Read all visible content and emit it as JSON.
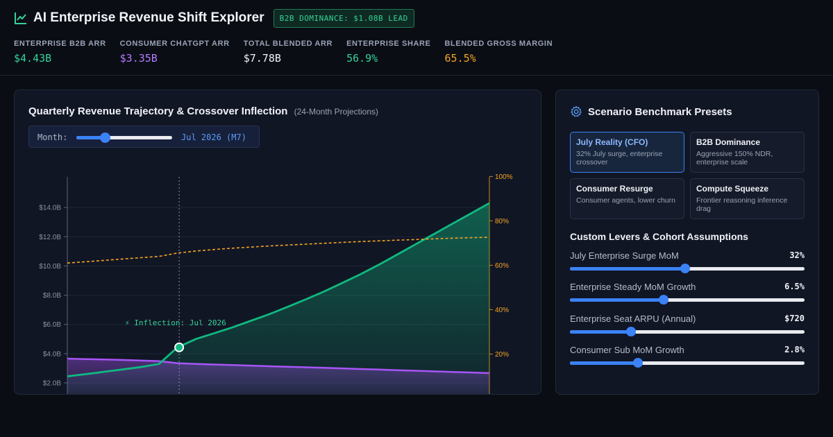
{
  "header": {
    "title": "AI Enterprise Revenue Shift Explorer",
    "badge": "B2B DOMINANCE: $1.08B LEAD",
    "kpis": [
      {
        "label": "ENTERPRISE B2B ARR",
        "value": "$4.43B",
        "color": "#34d399"
      },
      {
        "label": "CONSUMER CHATGPT ARR",
        "value": "$3.35B",
        "color": "#b57bff"
      },
      {
        "label": "TOTAL BLENDED ARR",
        "value": "$7.78B",
        "color": "#f2f4f8"
      },
      {
        "label": "ENTERPRISE SHARE",
        "value": "56.9%",
        "color": "#34d399"
      },
      {
        "label": "BLENDED GROSS MARGIN",
        "value": "65.5%",
        "color": "#f5a524"
      }
    ]
  },
  "chart_card": {
    "title": "Quarterly Revenue Trajectory & Crossover Inflection",
    "subtitle": "(24-Month Projections)",
    "month_label": "Month:",
    "month_value": "Jul 2026 (M7)",
    "month_slider_fraction": 0.3
  },
  "chart_data": {
    "type": "area",
    "y_left_ticks": [
      "$2.0B",
      "$4.0B",
      "$6.0B",
      "$8.0B",
      "$10.0B",
      "$12.0B",
      "$14.0B"
    ],
    "y_right_ticks": [
      "20%",
      "40%",
      "60%",
      "80%",
      "100%"
    ],
    "ylim_left": [
      2.0,
      14.0
    ],
    "ylim_right": [
      20,
      100
    ],
    "x": [
      1,
      2,
      3,
      4,
      5,
      6,
      7,
      8,
      9,
      10,
      11,
      12,
      13,
      14,
      15,
      16,
      17,
      18,
      19,
      20,
      21,
      22,
      23,
      24
    ],
    "series": [
      {
        "values": [
          2.45,
          2.6,
          2.76,
          2.92,
          3.08,
          3.3,
          4.43,
          5.0,
          5.4,
          5.8,
          6.25,
          6.7,
          7.2,
          7.72,
          8.26,
          8.85,
          9.45,
          10.1,
          10.8,
          11.5,
          12.2,
          12.9,
          13.6,
          14.3
        ],
        "color": "#10b981",
        "axis": "left"
      },
      {
        "values": [
          3.66,
          3.63,
          3.6,
          3.57,
          3.53,
          3.49,
          3.35,
          3.3,
          3.26,
          3.22,
          3.18,
          3.14,
          3.1,
          3.07,
          3.03,
          2.99,
          2.95,
          2.91,
          2.87,
          2.83,
          2.79,
          2.75,
          2.71,
          2.67
        ],
        "color": "#a855f7",
        "axis": "left"
      },
      {
        "values": [
          61,
          61.6,
          62.2,
          62.8,
          63.4,
          64,
          65.5,
          66.4,
          67.1,
          67.7,
          68.2,
          68.7,
          69.1,
          69.5,
          69.9,
          70.3,
          70.7,
          71,
          71.3,
          71.6,
          71.9,
          72.2,
          72.4,
          72.6
        ],
        "color": "#f5a524",
        "axis": "right",
        "style": "dashed"
      }
    ],
    "annotation": {
      "x": 7,
      "text": "⚡ Inflection: Jul 2026"
    },
    "grid": true
  },
  "side_card": {
    "title": "Scenario Benchmark Presets",
    "presets": [
      {
        "name": "July Reality (CFO)",
        "desc": "32% July surge, enterprise crossover",
        "active": true
      },
      {
        "name": "B2B Dominance",
        "desc": "Aggressive 150% NDR, enterprise scale",
        "active": false
      },
      {
        "name": "Consumer Resurge",
        "desc": "Consumer agents, lower churn",
        "active": false
      },
      {
        "name": "Compute Squeeze",
        "desc": "Frontier reasoning inference drag",
        "active": false
      }
    ],
    "levers_title": "Custom Levers & Cohort Assumptions",
    "levers": [
      {
        "name": "July Enterprise Surge MoM",
        "value": "32%",
        "fraction": 0.49
      },
      {
        "name": "Enterprise Steady MoM Growth",
        "value": "6.5%",
        "fraction": 0.4
      },
      {
        "name": "Enterprise Seat ARPU (Annual)",
        "value": "$720",
        "fraction": 0.26
      },
      {
        "name": "Consumer Sub MoM Growth",
        "value": "2.8%",
        "fraction": 0.29
      }
    ]
  },
  "colors": {
    "accent": "#3b82f6",
    "enterprise": "#10b981",
    "consumer": "#a855f7",
    "margin": "#f5a524"
  }
}
